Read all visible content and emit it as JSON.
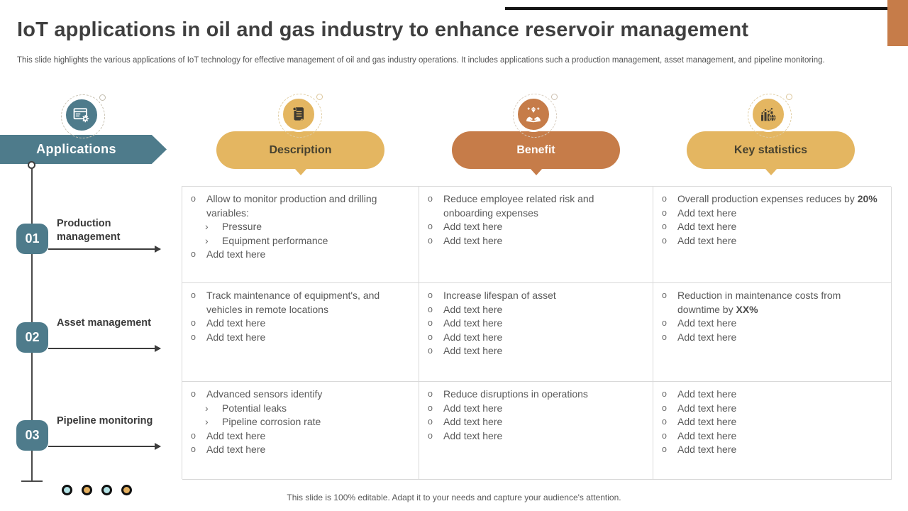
{
  "slide": {
    "title": "IoT applications in oil and gas industry to enhance reservoir management",
    "subtitle": "This slide highlights the various applications of IoT technology for effective  management of oil and gas industry operations. It includes applications such a production management, asset management, and pipeline monitoring.",
    "footer": "This slide is 100% editable. Adapt it to your needs and capture your audience's attention."
  },
  "colors": {
    "teal": "#4e7b8b",
    "gold": "#e4b661",
    "orange": "#c67c49",
    "title_text": "#3f3f3f",
    "cell_text": "#595959",
    "table_border": "#d9d9d9",
    "top_bar": "#141414"
  },
  "sidebar": {
    "header_label": "Applications",
    "header_icon": "window-gear-icon",
    "items": [
      {
        "number": "01",
        "label": "Production management"
      },
      {
        "number": "02",
        "label": "Asset management"
      },
      {
        "number": "03",
        "label": "Pipeline monitoring"
      }
    ],
    "dot_colors": [
      "#b2e1e4",
      "#e2ae5e",
      "#b2e1e4",
      "#e2ae5e"
    ]
  },
  "columns": [
    {
      "label": "Description",
      "style": "gold",
      "icon": "scroll-icon"
    },
    {
      "label": "Benefit",
      "style": "orange",
      "icon": "hands-diamond-icon"
    },
    {
      "label": "Key statistics",
      "style": "gold",
      "icon": "chart-globe-icon"
    }
  ],
  "table": {
    "rows": [
      {
        "cells": [
          [
            {
              "text": "Allow to monitor production and drilling variables:"
            },
            {
              "text": "Pressure",
              "sub": true
            },
            {
              "text": "Equipment performance",
              "sub": true
            },
            {
              "text": "Add text here"
            }
          ],
          [
            {
              "text": "Reduce employee related risk and onboarding expenses"
            },
            {
              "text": "Add text here"
            },
            {
              "text": "Add text here"
            }
          ],
          [
            {
              "text": "Overall production expenses reduces by ",
              "bold": "20%"
            },
            {
              "text": "Add text here"
            },
            {
              "text": "Add text here"
            },
            {
              "text": "Add text here"
            }
          ]
        ]
      },
      {
        "cells": [
          [
            {
              "text": "Track maintenance of equipment's, and vehicles in remote locations"
            },
            {
              "text": "Add text here"
            },
            {
              "text": "Add text here"
            }
          ],
          [
            {
              "text": "Increase lifespan of asset"
            },
            {
              "text": "Add text here"
            },
            {
              "text": "Add text here"
            },
            {
              "text": "Add text here"
            },
            {
              "text": "Add text here"
            }
          ],
          [
            {
              "text": "Reduction in maintenance costs from downtime by ",
              "bold": "XX%"
            },
            {
              "text": "Add text here"
            },
            {
              "text": "Add text here"
            }
          ]
        ]
      },
      {
        "cells": [
          [
            {
              "text": "Advanced sensors identify"
            },
            {
              "text": "Potential leaks",
              "sub": true
            },
            {
              "text": "Pipeline corrosion rate",
              "sub": true
            },
            {
              "text": "Add text here"
            },
            {
              "text": "Add text here"
            }
          ],
          [
            {
              "text": "Reduce disruptions in operations"
            },
            {
              "text": "Add text here"
            },
            {
              "text": "Add text here"
            },
            {
              "text": "Add text here"
            }
          ],
          [
            {
              "text": "Add text here"
            },
            {
              "text": "Add text here"
            },
            {
              "text": "Add text here"
            },
            {
              "text": "Add text here"
            },
            {
              "text": "Add text here"
            }
          ]
        ]
      }
    ]
  }
}
